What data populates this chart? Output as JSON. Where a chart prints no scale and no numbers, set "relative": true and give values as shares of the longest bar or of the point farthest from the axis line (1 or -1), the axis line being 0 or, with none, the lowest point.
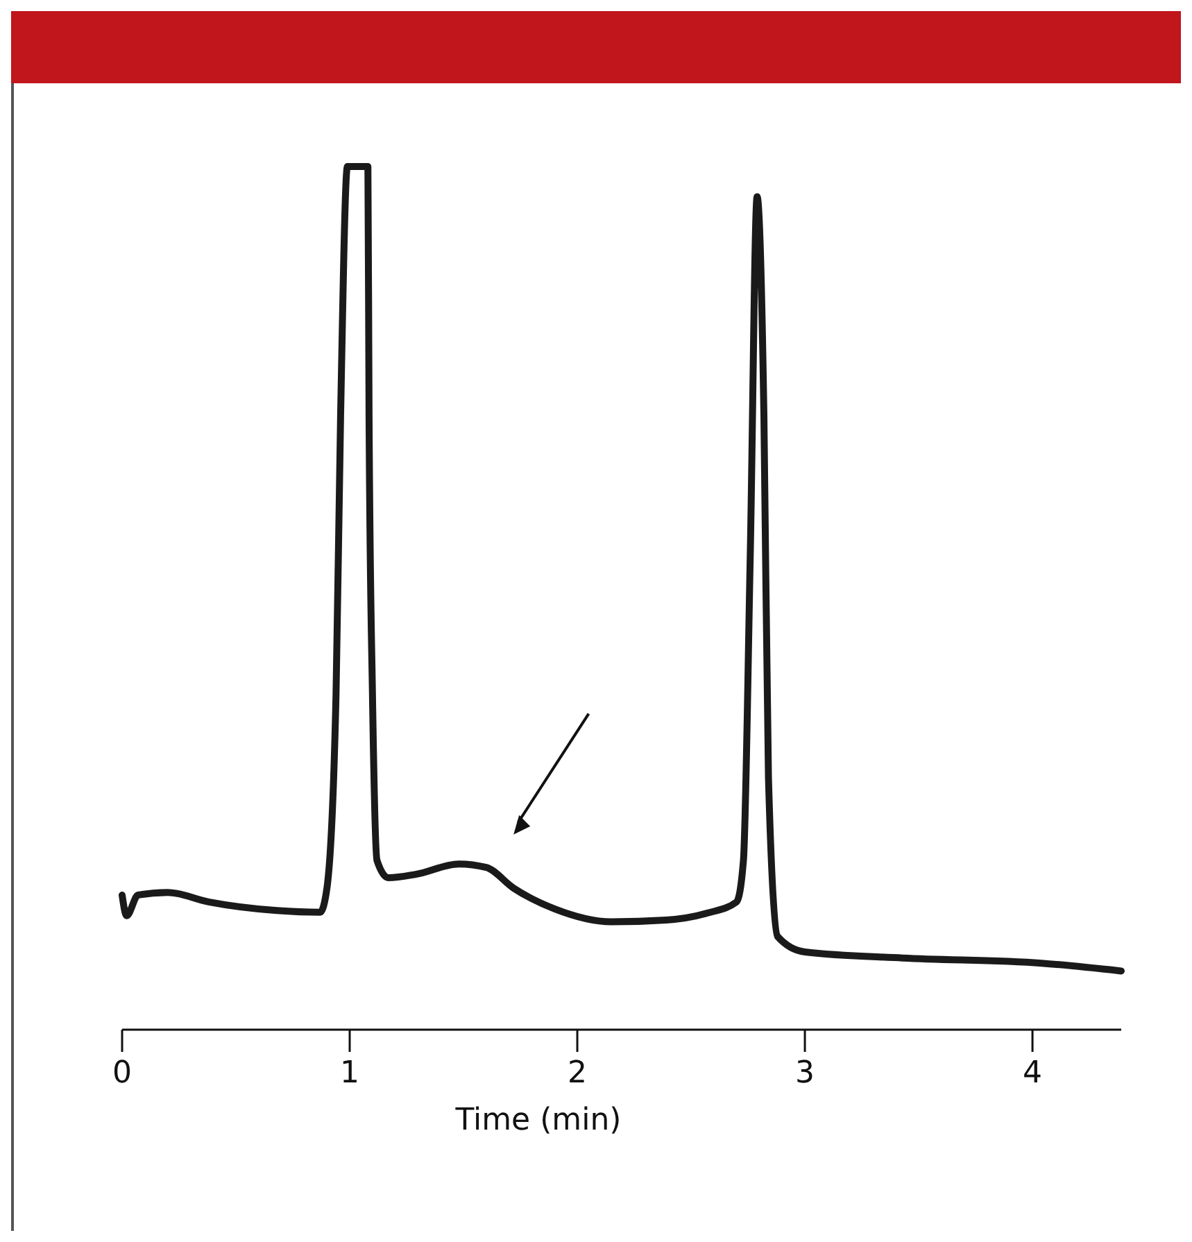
{
  "chart_data": {
    "type": "line",
    "xlabel": "Time (min)",
    "relative": true,
    "xlim": [
      0,
      4.39
    ],
    "xticks": [
      0,
      1,
      2,
      3,
      4
    ],
    "x": [
      0,
      0.02,
      0.07,
      0.2,
      0.38,
      0.68,
      0.87,
      0.9,
      0.94,
      0.96,
      0.99,
      1.08,
      1.085,
      1.1,
      1.12,
      1.17,
      1.29,
      1.48,
      1.6,
      1.72,
      1.9,
      2.15,
      2.39,
      2.57,
      2.7,
      2.73,
      2.76,
      2.79,
      2.82,
      2.84,
      2.88,
      3.0,
      3.43,
      4.04,
      4.39
    ],
    "series": [
      {
        "color": "#1a1a1a",
        "values": [
          0.156,
          0.132,
          0.156,
          0.159,
          0.148,
          0.138,
          0.136,
          0.164,
          0.389,
          0.711,
          1,
          1,
          0.711,
          0.389,
          0.196,
          0.176,
          0.18,
          0.192,
          0.188,
          0.164,
          0.14,
          0.125,
          0.127,
          0.135,
          0.148,
          0.196,
          0.55,
          0.965,
          0.711,
          0.292,
          0.108,
          0.09,
          0.083,
          0.077,
          0.068
        ]
      }
    ]
  }
}
